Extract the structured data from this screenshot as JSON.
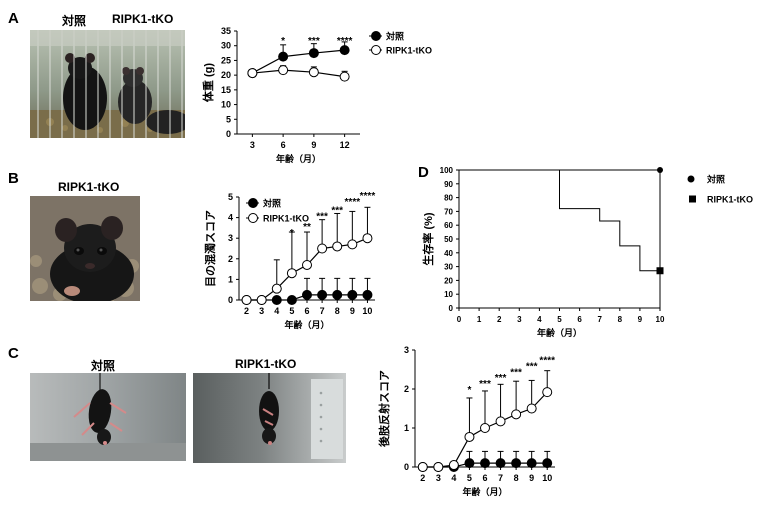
{
  "panels": {
    "A": {
      "letter": "A",
      "photo_label_control": "対照",
      "photo_label_ko": "RIPK1-tKO"
    },
    "B": {
      "letter": "B",
      "photo_label": "RIPK1-tKO"
    },
    "C": {
      "letter": "C",
      "photo_label_control": "対照",
      "photo_label_ko": "RIPK1-tKO"
    },
    "D": {
      "letter": "D"
    }
  },
  "colors": {
    "ink": "#000000",
    "paper": "#ffffff"
  },
  "chart_data": [
    {
      "id": "A",
      "type": "line",
      "title": "",
      "xlabel": "年齢（月）",
      "ylabel": "体重 (g)",
      "x": [
        3,
        6,
        9,
        12
      ],
      "xticks": [
        "3",
        "6",
        "9",
        "12"
      ],
      "xlim": [
        1.5,
        13.5
      ],
      "ylim": [
        0,
        35
      ],
      "yticks": [
        0,
        5,
        10,
        15,
        20,
        25,
        30,
        35
      ],
      "series": [
        {
          "name": "対照",
          "marker": "filled-circle",
          "values": [
            20.7,
            26.3,
            27.5,
            28.5
          ],
          "err": [
            1.2,
            4.0,
            3.2,
            2.8
          ]
        },
        {
          "name": "RIPK1-tKO",
          "marker": "open-circle",
          "values": [
            20.7,
            21.7,
            21.0,
            19.5
          ],
          "err": [
            1.0,
            1.5,
            1.8,
            1.8
          ]
        }
      ],
      "annotations": [
        {
          "x": 6,
          "y": 30.5,
          "text": "*"
        },
        {
          "x": 9,
          "y": 30.5,
          "text": "***"
        },
        {
          "x": 12,
          "y": 30.5,
          "text": "****"
        }
      ],
      "legend": "top-right",
      "grid": false
    },
    {
      "id": "B",
      "type": "line",
      "title": "",
      "xlabel": "年齢（月）",
      "ylabel": "目の混濁スコア",
      "x": [
        2,
        3,
        4,
        5,
        6,
        7,
        8,
        9,
        10
      ],
      "xticks": [
        "2",
        "3",
        "4",
        "5",
        "6",
        "7",
        "8",
        "9",
        "10"
      ],
      "xlim": [
        1.5,
        10.5
      ],
      "ylim": [
        0,
        5
      ],
      "yticks": [
        0,
        1,
        2,
        3,
        4,
        5
      ],
      "series": [
        {
          "name": "対照",
          "marker": "filled-circle",
          "values": [
            0,
            0,
            0,
            0,
            0.25,
            0.25,
            0.25,
            0.25,
            0.25
          ],
          "err": [
            0,
            0,
            0,
            0,
            0.8,
            0.8,
            0.8,
            0.8,
            0.8
          ]
        },
        {
          "name": "RIPK1-tKO",
          "marker": "open-circle",
          "values": [
            0,
            0,
            0.55,
            1.3,
            1.7,
            2.5,
            2.6,
            2.7,
            3.0
          ],
          "err": [
            0,
            0,
            1.4,
            2.0,
            1.6,
            1.4,
            1.6,
            1.6,
            1.5
          ]
        }
      ],
      "annotations": [
        {
          "x": 5,
          "y": 3.1,
          "text": "*"
        },
        {
          "x": 6,
          "y": 3.4,
          "text": "**"
        },
        {
          "x": 7,
          "y": 3.9,
          "text": "***"
        },
        {
          "x": 8,
          "y": 4.2,
          "text": "***"
        },
        {
          "x": 9,
          "y": 4.6,
          "text": "****"
        },
        {
          "x": 10,
          "y": 4.9,
          "text": "****"
        }
      ],
      "legend": "top-left",
      "grid": false
    },
    {
      "id": "C",
      "type": "line",
      "title": "",
      "xlabel": "年齢（月）",
      "ylabel": "後肢反射スコア",
      "x": [
        2,
        3,
        4,
        5,
        6,
        7,
        8,
        9,
        10
      ],
      "xticks": [
        "2",
        "3",
        "4",
        "5",
        "6",
        "7",
        "8",
        "9",
        "10"
      ],
      "xlim": [
        1.5,
        10.5
      ],
      "ylim": [
        0,
        3
      ],
      "yticks": [
        0,
        1,
        2,
        3
      ],
      "series": [
        {
          "name": "対照",
          "marker": "filled-circle",
          "values": [
            0,
            0,
            0,
            0.1,
            0.1,
            0.1,
            0.1,
            0.1,
            0.1
          ],
          "err": [
            0,
            0,
            0,
            0.3,
            0.3,
            0.3,
            0.3,
            0.3,
            0.3
          ]
        },
        {
          "name": "RIPK1-tKO",
          "marker": "open-circle",
          "values": [
            0,
            0,
            0.05,
            0.77,
            1.0,
            1.17,
            1.35,
            1.5,
            1.92
          ],
          "err": [
            0,
            0,
            0,
            1.0,
            0.95,
            0.95,
            0.85,
            0.72,
            0.55
          ]
        }
      ],
      "annotations": [
        {
          "x": 5,
          "y": 1.9,
          "text": "*"
        },
        {
          "x": 6,
          "y": 2.05,
          "text": "***"
        },
        {
          "x": 7,
          "y": 2.2,
          "text": "***"
        },
        {
          "x": 8,
          "y": 2.35,
          "text": "***"
        },
        {
          "x": 9,
          "y": 2.5,
          "text": "***"
        },
        {
          "x": 10,
          "y": 2.65,
          "text": "****"
        }
      ],
      "legend": "none",
      "grid": false
    },
    {
      "id": "D",
      "type": "line",
      "title": "",
      "xlabel": "年齢（月）",
      "ylabel": "生存率 (%)",
      "x": [
        0,
        1,
        2,
        3,
        4,
        5,
        6,
        7,
        8,
        9,
        10
      ],
      "xticks": [
        "0",
        "1",
        "2",
        "3",
        "4",
        "5",
        "6",
        "7",
        "8",
        "9",
        "10"
      ],
      "xlim": [
        0,
        10
      ],
      "ylim": [
        0,
        100
      ],
      "yticks": [
        0,
        10,
        20,
        30,
        40,
        50,
        60,
        70,
        80,
        90,
        100
      ],
      "series": [
        {
          "name": "対照",
          "marker": "filled-circle",
          "step": [
            [
              0,
              100
            ],
            [
              10,
              100
            ]
          ]
        },
        {
          "name": "RIPK1-tKO",
          "marker": "filled-square",
          "step": [
            [
              0,
              100
            ],
            [
              5,
              100
            ],
            [
              5,
              72
            ],
            [
              7,
              72
            ],
            [
              7,
              63
            ],
            [
              8,
              63
            ],
            [
              8,
              45
            ],
            [
              9,
              45
            ],
            [
              9,
              27
            ],
            [
              10,
              27
            ]
          ]
        }
      ],
      "legend": "top-right",
      "grid": false
    }
  ]
}
